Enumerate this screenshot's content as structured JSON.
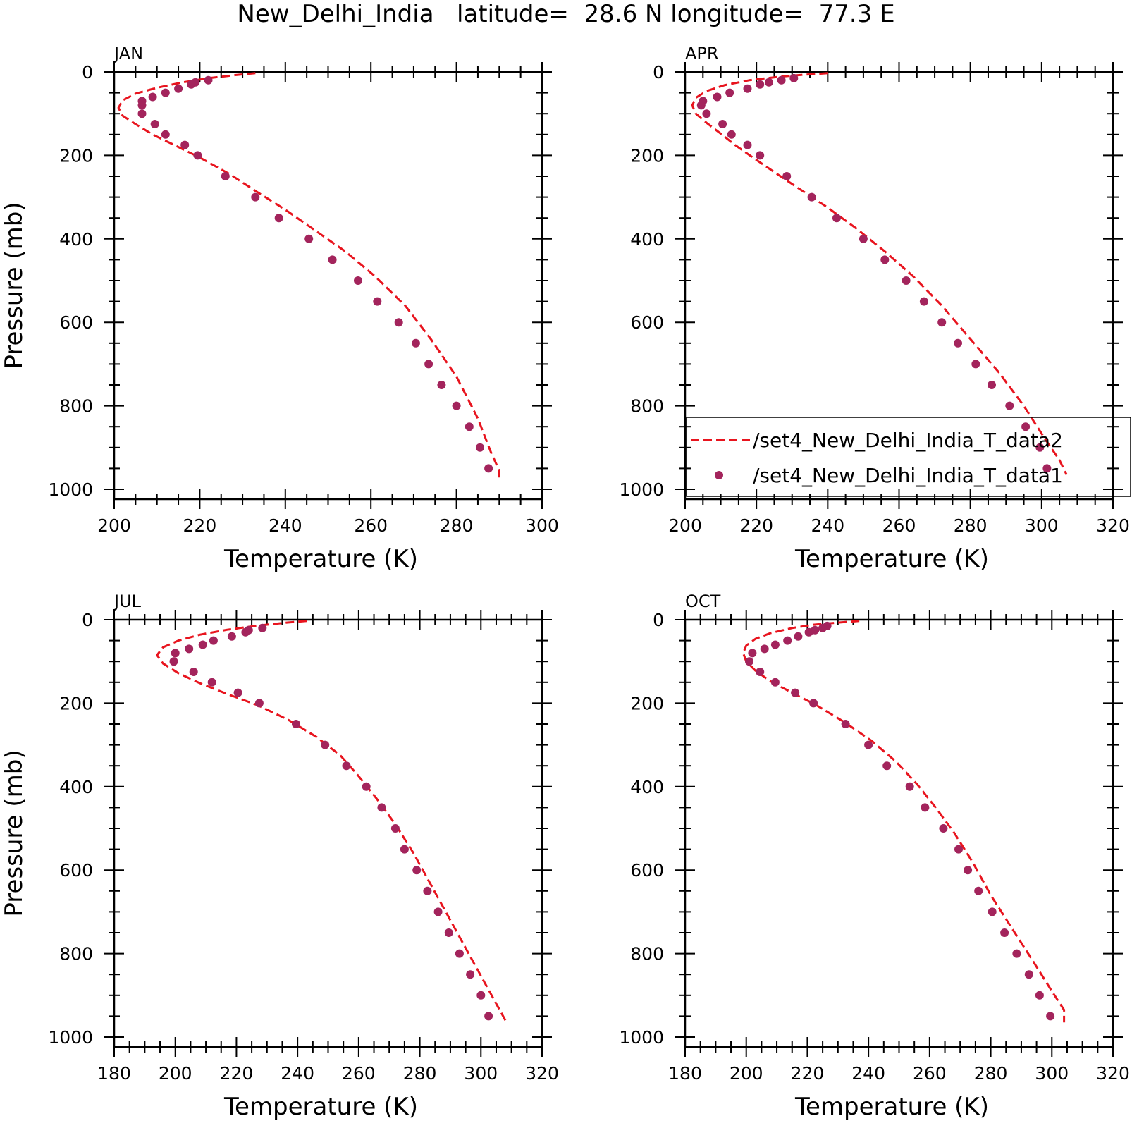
{
  "figure_title": "New_Delhi_India   latitude=  28.6 N longitude=  77.3 E",
  "legend": {
    "line_label": "/set4_New_Delhi_India_T_data2",
    "dot_label": "/set4_New_Delhi_India_T_data1"
  },
  "colors": {
    "line": "#e8141e",
    "dots": "#a3245c",
    "axes": "#000000"
  },
  "chart_data": [
    {
      "type": "line",
      "panel_label": "JAN",
      "xlabel": "Temperature (K)",
      "ylabel": "Pressure (mb)",
      "xlim": [
        200,
        300
      ],
      "ylim": [
        1000,
        0
      ],
      "xticks": [
        "200",
        "220",
        "240",
        "260",
        "280",
        "300"
      ],
      "yticks": [
        "0",
        "200",
        "400",
        "600",
        "800",
        "1000"
      ],
      "grid": false,
      "show_legend": false,
      "series": [
        {
          "name": "/set4_New_Delhi_India_T_data2",
          "style": "dashed-line",
          "x": [
            233,
            228,
            222,
            216,
            210,
            205,
            202,
            201,
            202,
            205,
            209,
            214,
            220,
            227,
            233,
            240,
            247,
            254,
            261,
            268,
            274,
            280,
            285,
            288,
            290,
            290
          ],
          "y": [
            3,
            8,
            15,
            25,
            38,
            52,
            68,
            86,
            105,
            125,
            150,
            175,
            205,
            245,
            285,
            330,
            380,
            430,
            490,
            560,
            640,
            730,
            830,
            910,
            955,
            975
          ]
        },
        {
          "name": "/set4_New_Delhi_India_T_data1",
          "style": "dots",
          "x": [
            222,
            219,
            218,
            215,
            212,
            209,
            206.5,
            206.5,
            206.5,
            209.5,
            212,
            216.5,
            219.5,
            226,
            233,
            238.5,
            245.5,
            251,
            257,
            261.5,
            266.5,
            270.5,
            273.5,
            276.5,
            280,
            283,
            285.5,
            287.5
          ],
          "y": [
            20,
            25,
            30,
            40,
            50,
            60,
            70,
            80,
            100,
            125,
            150,
            175,
            200,
            250,
            300,
            350,
            400,
            450,
            500,
            550,
            600,
            650,
            700,
            750,
            800,
            850,
            900,
            950
          ]
        }
      ]
    },
    {
      "type": "line",
      "panel_label": "APR",
      "xlabel": "Temperature (K)",
      "ylabel": "",
      "xlim": [
        200,
        320
      ],
      "ylim": [
        1000,
        0
      ],
      "xticks": [
        "200",
        "220",
        "240",
        "260",
        "280",
        "300",
        "320"
      ],
      "yticks": [
        "0",
        "200",
        "400",
        "600",
        "800",
        "1000"
      ],
      "grid": false,
      "show_legend": true,
      "legend_position": "bottom-right",
      "series": [
        {
          "name": "/set4_New_Delhi_India_T_data2",
          "style": "dashed-line",
          "x": [
            240,
            233,
            226,
            218,
            211,
            206,
            203,
            202,
            203,
            206,
            210,
            214,
            219,
            225,
            232,
            240,
            248,
            256,
            264,
            272,
            280,
            288,
            295,
            301,
            305,
            307
          ],
          "y": [
            3,
            7,
            12,
            20,
            32,
            46,
            62,
            80,
            100,
            122,
            148,
            175,
            205,
            240,
            280,
            325,
            375,
            430,
            490,
            560,
            640,
            720,
            800,
            880,
            930,
            965
          ]
        },
        {
          "name": "/set4_New_Delhi_India_T_data1",
          "style": "dots",
          "x": [
            230.5,
            227,
            223.5,
            221,
            217.5,
            212.5,
            209,
            205,
            204.5,
            206,
            210.5,
            213,
            217.5,
            221,
            228.5,
            235.5,
            242.5,
            250,
            256,
            262,
            267,
            272,
            276.5,
            281.5,
            286,
            291,
            295.5,
            299.5,
            301.5
          ],
          "y": [
            15,
            20,
            25,
            30,
            40,
            50,
            60,
            70,
            80,
            100,
            125,
            150,
            175,
            200,
            250,
            300,
            350,
            400,
            450,
            500,
            550,
            600,
            650,
            700,
            750,
            800,
            850,
            900,
            950
          ]
        }
      ]
    },
    {
      "type": "line",
      "panel_label": "JUL",
      "xlabel": "Temperature (K)",
      "ylabel": "Pressure (mb)",
      "xlim": [
        180,
        320
      ],
      "ylim": [
        1000,
        0
      ],
      "xticks": [
        "180",
        "200",
        "220",
        "240",
        "260",
        "280",
        "300",
        "320"
      ],
      "yticks": [
        "0",
        "200",
        "400",
        "600",
        "800",
        "1000"
      ],
      "grid": false,
      "show_legend": false,
      "series": [
        {
          "name": "/set4_New_Delhi_India_T_data2",
          "style": "dashed-line",
          "x": [
            243,
            235,
            226,
            217,
            208,
            201,
            196,
            194,
            196,
            201,
            208,
            217,
            227,
            237,
            246,
            254,
            260,
            266,
            272,
            278,
            284,
            290,
            296,
            302,
            308
          ],
          "y": [
            3,
            8,
            15,
            24,
            36,
            50,
            66,
            85,
            105,
            128,
            152,
            178,
            205,
            240,
            280,
            325,
            375,
            430,
            490,
            560,
            640,
            720,
            800,
            880,
            960
          ]
        },
        {
          "name": "/set4_New_Delhi_India_T_data1",
          "style": "dots",
          "x": [
            228.5,
            224,
            223,
            218.5,
            212.5,
            209,
            204.5,
            200,
            199.5,
            206,
            212,
            220.5,
            227.5,
            239.5,
            249,
            256,
            262.5,
            267.5,
            272,
            275,
            279,
            282.5,
            286,
            289.5,
            293,
            296.5,
            300,
            302.5
          ],
          "y": [
            20,
            25,
            30,
            40,
            50,
            60,
            70,
            80,
            100,
            125,
            150,
            175,
            200,
            250,
            300,
            350,
            400,
            450,
            500,
            550,
            600,
            650,
            700,
            750,
            800,
            850,
            900,
            950
          ]
        }
      ]
    },
    {
      "type": "line",
      "panel_label": "OCT",
      "xlabel": "Temperature (K)",
      "ylabel": "",
      "xlim": [
        180,
        320
      ],
      "ylim": [
        1000,
        0
      ],
      "xticks": [
        "180",
        "200",
        "220",
        "240",
        "260",
        "280",
        "300",
        "320"
      ],
      "yticks": [
        "0",
        "200",
        "400",
        "600",
        "800",
        "1000"
      ],
      "grid": false,
      "show_legend": false,
      "series": [
        {
          "name": "/set4_New_Delhi_India_T_data2",
          "style": "dashed-line",
          "x": [
            237,
            230,
            222,
            215,
            208,
            203,
            200,
            199,
            200,
            203,
            208,
            215,
            223,
            232,
            241,
            249,
            256,
            262,
            268,
            274,
            280,
            287,
            294,
            300,
            304,
            304
          ],
          "y": [
            3,
            7,
            12,
            20,
            32,
            46,
            62,
            80,
            100,
            122,
            148,
            175,
            205,
            245,
            290,
            340,
            395,
            450,
            510,
            580,
            660,
            740,
            820,
            890,
            935,
            965
          ]
        },
        {
          "name": "/set4_New_Delhi_India_T_data1",
          "style": "dots",
          "x": [
            226.5,
            225,
            222.5,
            220.5,
            217,
            213.5,
            209.5,
            206,
            202,
            201,
            204.5,
            209.5,
            216,
            222,
            232.5,
            240,
            246,
            253.5,
            258.5,
            264.5,
            269.5,
            272.5,
            276,
            280.5,
            284.5,
            288.5,
            292.5,
            296,
            299.5
          ],
          "y": [
            15,
            20,
            25,
            30,
            40,
            50,
            60,
            70,
            80,
            100,
            125,
            150,
            175,
            200,
            250,
            300,
            350,
            400,
            450,
            500,
            550,
            600,
            650,
            700,
            750,
            800,
            850,
            900,
            950
          ]
        }
      ]
    }
  ]
}
